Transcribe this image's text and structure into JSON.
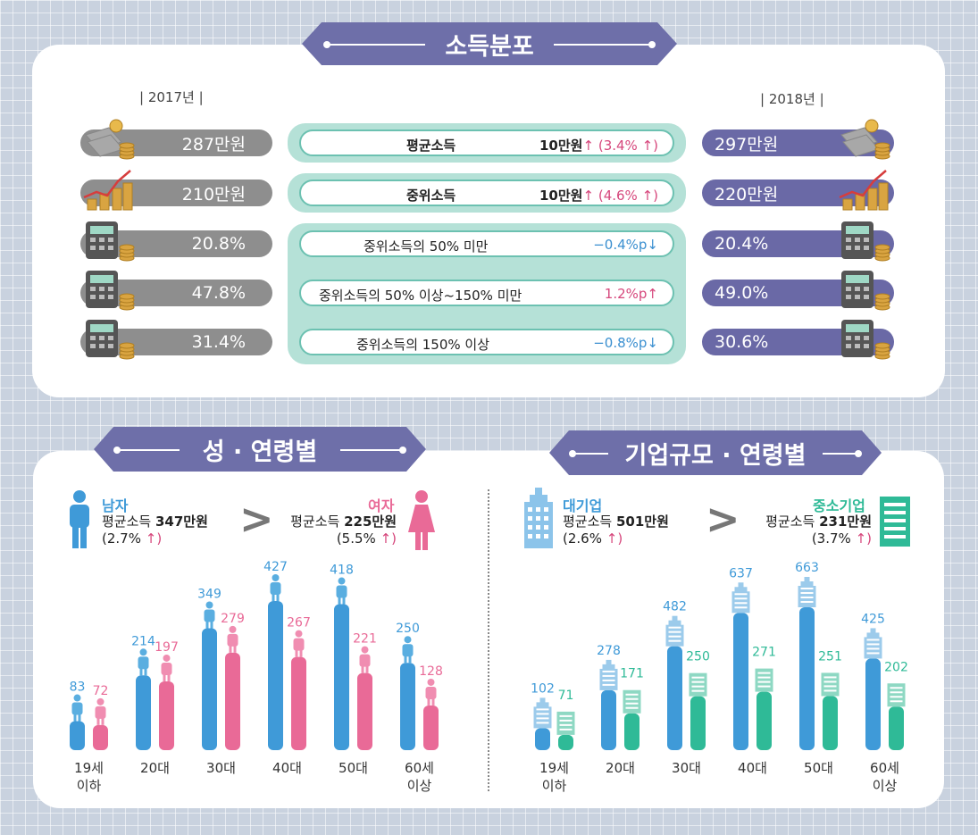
{
  "income_distribution": {
    "title": "소득분포",
    "year_left": "| 2017년 |",
    "year_right": "| 2018년 |",
    "rows": [
      {
        "label": "평균소득",
        "v2017": "287만원",
        "v2018": "297만원",
        "change": "10만원",
        "pct": "3.4%",
        "dir": "up",
        "icon": "money-bills-icon"
      },
      {
        "label": "중위소득",
        "v2017": "210만원",
        "v2018": "220만원",
        "change": "10만원",
        "pct": "4.6%",
        "dir": "up",
        "icon": "growth-coins-icon"
      },
      {
        "label": "중위소득의 50% 미만",
        "v2017": "20.8%",
        "v2018": "20.4%",
        "change": "−0.4%p",
        "pct": "",
        "dir": "down",
        "icon": "calculator-icon"
      },
      {
        "label": "중위소득의 50% 이상~150% 미만",
        "v2017": "47.8%",
        "v2018": "49.0%",
        "change": "1.2%p",
        "pct": "",
        "dir": "up",
        "icon": "calculator-icon"
      },
      {
        "label": "중위소득의 150% 이상",
        "v2017": "31.4%",
        "v2018": "30.6%",
        "change": "−0.8%p",
        "pct": "",
        "dir": "down",
        "icon": "calculator-icon"
      }
    ]
  },
  "gender_age": {
    "title": "성 · 연령별",
    "male": {
      "name": "남자",
      "avg_label": "평균소득",
      "avg_value": "347만원",
      "change": "(2.7%",
      "color": "#3f9ad8"
    },
    "female": {
      "name": "여자",
      "avg_label": "평균소득",
      "avg_value": "225만원",
      "change": "(5.5%",
      "color": "#e96a97"
    }
  },
  "company_age": {
    "title": "기업규모 · 연령별",
    "large": {
      "name": "대기업",
      "avg_label": "평균소득",
      "avg_value": "501만원",
      "change": "(2.6%",
      "color": "#3f9ad8"
    },
    "small": {
      "name": "중소기업",
      "avg_label": "평균소득",
      "avg_value": "231만원",
      "change": "(3.7%",
      "color": "#2fba97"
    }
  },
  "chart_data": [
    {
      "type": "bar",
      "categories": [
        "19세\n이하",
        "20대",
        "30대",
        "40대",
        "50대",
        "60세\n이상"
      ],
      "series": [
        {
          "name": "남자",
          "values": [
            83,
            214,
            349,
            427,
            418,
            250
          ]
        },
        {
          "name": "여자",
          "values": [
            72,
            197,
            279,
            267,
            221,
            128
          ]
        }
      ],
      "unit": "만원"
    },
    {
      "type": "bar",
      "categories": [
        "19세\n이하",
        "20대",
        "30대",
        "40대",
        "50대",
        "60세\n이상"
      ],
      "series": [
        {
          "name": "대기업",
          "values": [
            102,
            278,
            482,
            637,
            663,
            425
          ]
        },
        {
          "name": "중소기업",
          "values": [
            71,
            171,
            250,
            271,
            251,
            202
          ]
        }
      ],
      "unit": "만원"
    }
  ]
}
